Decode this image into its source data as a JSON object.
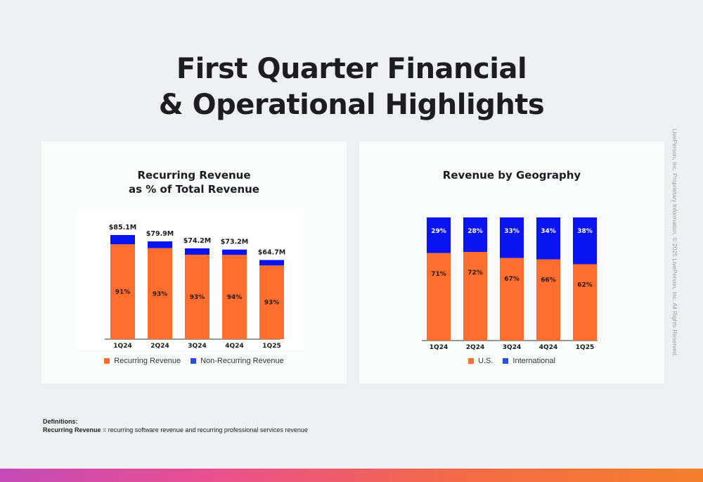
{
  "header": {
    "title_line1": "First Quarter Financial",
    "title_line2": "& Operational Highlights"
  },
  "colors": {
    "recurring": "#ff6e2e",
    "non_recurring": "#0a14f0",
    "us": "#ff6e2e",
    "international": "#0a14f0"
  },
  "chart_data": [
    {
      "type": "bar",
      "stacked": true,
      "title": "Recurring Revenue\nas % of Total Revenue",
      "title_line1": "Recurring Revenue",
      "title_line2": "as % of Total Revenue",
      "categories": [
        "1Q24",
        "2Q24",
        "3Q24",
        "4Q24",
        "1Q25"
      ],
      "totals": [
        85.1,
        79.9,
        74.2,
        73.2,
        64.7
      ],
      "total_labels": [
        "$85.1M",
        "$79.9M",
        "$74.2M",
        "$73.2M",
        "$64.7M"
      ],
      "recurring_pct_labels": [
        "91%",
        "93%",
        "93%",
        "94%",
        "93%"
      ],
      "series": [
        {
          "name": "Recurring Revenue",
          "pct": [
            91,
            93,
            93,
            94,
            93
          ]
        },
        {
          "name": "Non-Recurring Revenue",
          "pct": [
            9,
            7,
            7,
            6,
            7
          ]
        }
      ],
      "ylim": [
        0,
        90
      ],
      "legend": "bottom"
    },
    {
      "type": "bar",
      "stacked": true,
      "percent": true,
      "title": "Revenue by Geography",
      "categories": [
        "1Q24",
        "2Q24",
        "3Q24",
        "4Q24",
        "1Q25"
      ],
      "series": [
        {
          "name": "U.S.",
          "values": [
            71,
            72,
            67,
            66,
            62
          ],
          "labels": [
            "71%",
            "72%",
            "67%",
            "66%",
            "62%"
          ]
        },
        {
          "name": "International",
          "values": [
            29,
            28,
            33,
            34,
            38
          ],
          "labels": [
            "29%",
            "28%",
            "33%",
            "34%",
            "38%"
          ]
        }
      ],
      "ylim": [
        0,
        100
      ],
      "legend": "bottom"
    }
  ],
  "definitions": {
    "heading": "Definitions:",
    "term": "Recurring Revenue",
    "text": " = recurring software revenue and recurring professional services revenue"
  },
  "side_text": "LivePerson, Inc. Proprietary Information. © 2025 LivePerson, Inc. All Rights Reserved."
}
